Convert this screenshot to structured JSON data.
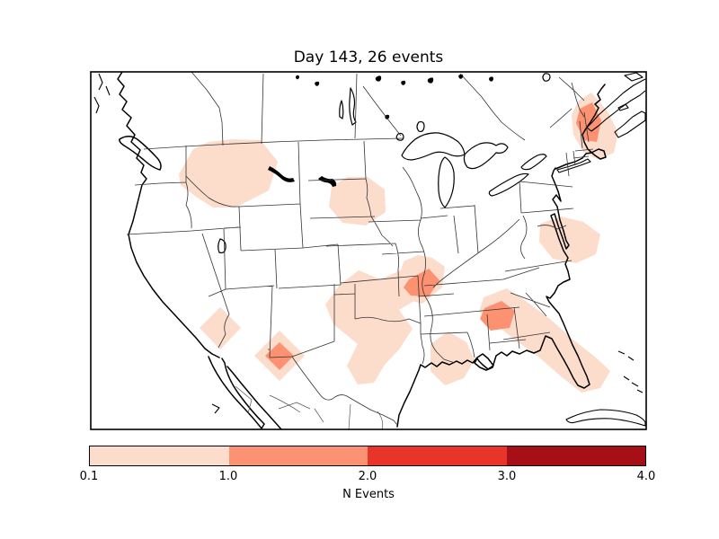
{
  "title": "Day 143, 26 events",
  "chart_data": {
    "type": "heatmap",
    "title": "Day 143, 26 events",
    "day": 143,
    "total_events": 26,
    "map": "North America / contiguous United States with state and province borders",
    "colorbar": {
      "label": "N Events",
      "ticks": [
        "0.1",
        "1.0",
        "2.0",
        "3.0",
        "4.0"
      ],
      "boundaries": [
        0.1,
        1.0,
        2.0,
        3.0,
        4.0
      ],
      "colors": [
        "#fcdccb",
        "#fc9272",
        "#e93529",
        "#a50f15"
      ],
      "orientation": "horizontal"
    },
    "regions": [
      {
        "name": "washington-idaho-montana",
        "bin": "0.1-1.0",
        "level": 0,
        "polygon": [
          [
            199,
            194
          ],
          [
            215,
            166
          ],
          [
            232,
            158
          ],
          [
            258,
            155
          ],
          [
            290,
            156
          ],
          [
            309,
            180
          ],
          [
            299,
            212
          ],
          [
            262,
            231
          ],
          [
            237,
            231
          ],
          [
            218,
            219
          ],
          [
            201,
            206
          ]
        ]
      },
      {
        "name": "dakota-nebraska-iowa",
        "bin": "0.1-1.0",
        "level": 0,
        "polygon": [
          [
            369,
            208
          ],
          [
            387,
            197
          ],
          [
            409,
            197
          ],
          [
            428,
            211
          ],
          [
            429,
            236
          ],
          [
            407,
            251
          ],
          [
            381,
            248
          ],
          [
            366,
            230
          ]
        ]
      },
      {
        "name": "new-england-outer",
        "bin": "0.1-1.0",
        "level": 0,
        "polygon": [
          [
            636,
            128
          ],
          [
            644,
            112
          ],
          [
            658,
            103
          ],
          [
            676,
            124
          ],
          [
            688,
            148
          ],
          [
            683,
            170
          ],
          [
            666,
            178
          ],
          [
            649,
            169
          ],
          [
            638,
            150
          ]
        ]
      },
      {
        "name": "virginia-coast",
        "bin": "0.1-1.0",
        "level": 0,
        "polygon": [
          [
            601,
            249
          ],
          [
            624,
            241
          ],
          [
            649,
            247
          ],
          [
            668,
            261
          ],
          [
            663,
            283
          ],
          [
            641,
            293
          ],
          [
            615,
            288
          ],
          [
            600,
            269
          ]
        ]
      },
      {
        "name": "oklahoma-texas",
        "bin": "0.1-1.0",
        "level": 0,
        "polygon": [
          [
            377,
            318
          ],
          [
            399,
            301
          ],
          [
            423,
            311
          ],
          [
            450,
            299
          ],
          [
            471,
            311
          ],
          [
            464,
            333
          ],
          [
            444,
            345
          ],
          [
            459,
            366
          ],
          [
            444,
            389
          ],
          [
            428,
            406
          ],
          [
            416,
            426
          ],
          [
            398,
            428
          ],
          [
            386,
            407
          ],
          [
            398,
            383
          ],
          [
            371,
            361
          ],
          [
            362,
            339
          ]
        ]
      },
      {
        "name": "louisiana-coast",
        "bin": "0.1-1.0",
        "level": 0,
        "polygon": [
          [
            479,
            383
          ],
          [
            499,
            369
          ],
          [
            519,
            381
          ],
          [
            528,
            401
          ],
          [
            516,
            421
          ],
          [
            495,
            429
          ],
          [
            479,
            413
          ]
        ]
      },
      {
        "name": "georgia-florida-band",
        "bin": "0.1-1.0",
        "level": 0,
        "polygon": [
          [
            538,
            331
          ],
          [
            564,
            321
          ],
          [
            589,
            338
          ],
          [
            613,
            356
          ],
          [
            639,
            379
          ],
          [
            663,
            398
          ],
          [
            679,
            413
          ],
          [
            668,
            432
          ],
          [
            647,
            437
          ],
          [
            624,
            419
          ],
          [
            599,
            397
          ],
          [
            574,
            379
          ],
          [
            551,
            361
          ],
          [
            533,
            347
          ]
        ]
      },
      {
        "name": "arizona-west",
        "bin": "0.1-1.0",
        "level": 0,
        "polygon": [
          [
            245,
            342
          ],
          [
            268,
            365
          ],
          [
            245,
            389
          ],
          [
            222,
            365
          ]
        ]
      },
      {
        "name": "new-mexico-outer",
        "bin": "0.1-1.0",
        "level": 0,
        "polygon": [
          [
            311,
            368
          ],
          [
            339,
            396
          ],
          [
            311,
            424
          ],
          [
            283,
            396
          ]
        ]
      },
      {
        "name": "arkansas-outer",
        "bin": "0.1-1.0",
        "level": 0,
        "polygon": [
          [
            449,
            291
          ],
          [
            465,
            284
          ],
          [
            481,
            287
          ],
          [
            495,
            297
          ],
          [
            492,
            320
          ],
          [
            470,
            338
          ],
          [
            451,
            333
          ],
          [
            443,
            312
          ]
        ]
      },
      {
        "name": "maine-core",
        "bin": "1.0-2.0",
        "level": 1,
        "polygon": [
          [
            645,
            121
          ],
          [
            659,
            114
          ],
          [
            669,
            134
          ],
          [
            664,
            158
          ],
          [
            650,
            156
          ],
          [
            641,
            137
          ]
        ]
      },
      {
        "name": "arkansas-core",
        "bin": "1.0-2.0",
        "level": 1,
        "polygon": [
          [
            455,
            311
          ],
          [
            477,
            299
          ],
          [
            489,
            312
          ],
          [
            477,
            330
          ],
          [
            457,
            329
          ],
          [
            449,
            320
          ]
        ]
      },
      {
        "name": "georgia-core",
        "bin": "1.0-2.0",
        "level": 1,
        "polygon": [
          [
            539,
            343
          ],
          [
            558,
            335
          ],
          [
            573,
            346
          ],
          [
            567,
            365
          ],
          [
            546,
            368
          ],
          [
            534,
            355
          ]
        ]
      },
      {
        "name": "new-mexico-core",
        "bin": "1.0-2.0",
        "level": 1,
        "polygon": [
          [
            311,
            381
          ],
          [
            327,
            396
          ],
          [
            311,
            412
          ],
          [
            295,
            396
          ]
        ]
      }
    ]
  }
}
